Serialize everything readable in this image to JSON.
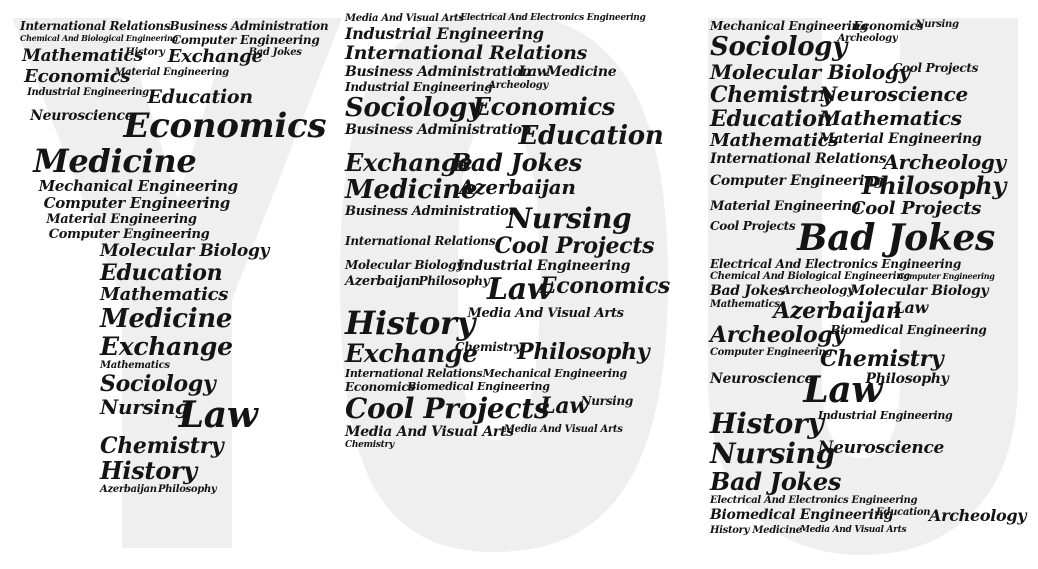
{
  "title": "YOU",
  "colors": {
    "letter_fill": "#efefef",
    "text": "#141414",
    "background": "#ffffff"
  },
  "letters": [
    {
      "glyph": "Y",
      "words": [
        {
          "t": "International Relations",
          "s": 12
        },
        {
          "t": "Business Administration",
          "s": 12
        },
        {
          "t": "Chemical And Biological Engineering",
          "s": 8
        },
        {
          "t": "Computer Engineering",
          "s": 12
        },
        {
          "t": "Mathematics",
          "s": 17
        },
        {
          "t": "History",
          "s": 10
        },
        {
          "t": "Exchange",
          "s": 18
        },
        {
          "t": "Bad Jokes",
          "s": 10
        },
        {
          "t": "Economics",
          "s": 18
        },
        {
          "t": "Material Engineering",
          "s": 10
        },
        {
          "t": "Industrial Engineering",
          "s": 10
        },
        {
          "t": "Education",
          "s": 19
        },
        {
          "t": "Neuroscience",
          "s": 14
        },
        {
          "t": "Economics",
          "s": 34
        },
        {
          "t": "Medicine",
          "s": 32
        },
        {
          "t": "Mechanical Engineering",
          "s": 15
        },
        {
          "t": "Computer Engineering",
          "s": 15
        },
        {
          "t": "Material Engineering",
          "s": 13
        },
        {
          "t": "Computer Engineering",
          "s": 13
        },
        {
          "t": "Molecular Biology",
          "s": 17
        },
        {
          "t": "Education",
          "s": 22
        },
        {
          "t": "Mathematics",
          "s": 18
        },
        {
          "t": "Medicine",
          "s": 26
        },
        {
          "t": "Exchange",
          "s": 25
        },
        {
          "t": "Mathematics",
          "s": 10
        },
        {
          "t": "Sociology",
          "s": 22
        },
        {
          "t": "Nursing",
          "s": 20
        },
        {
          "t": "Law",
          "s": 36
        },
        {
          "t": "Chemistry",
          "s": 22
        },
        {
          "t": "History",
          "s": 24
        },
        {
          "t": "Azerbaijan",
          "s": 10
        },
        {
          "t": "Philosophy",
          "s": 10
        }
      ]
    },
    {
      "glyph": "O",
      "words": [
        {
          "t": "Media And Visual Arts",
          "s": 10
        },
        {
          "t": "Electrical And Electronics Engineering",
          "s": 9
        },
        {
          "t": "Industrial Engineering",
          "s": 16
        },
        {
          "t": "International Relations",
          "s": 19
        },
        {
          "t": "Business Administration",
          "s": 14
        },
        {
          "t": "Law",
          "s": 14
        },
        {
          "t": "Medicine",
          "s": 14
        },
        {
          "t": "Industrial Engineering",
          "s": 12
        },
        {
          "t": "Archeology",
          "s": 10
        },
        {
          "t": "Sociology",
          "s": 26
        },
        {
          "t": "Economics",
          "s": 24
        },
        {
          "t": "Business Administration",
          "s": 14
        },
        {
          "t": "Education",
          "s": 26
        },
        {
          "t": "Exchange",
          "s": 24
        },
        {
          "t": "Bad Jokes",
          "s": 24
        },
        {
          "t": "Medicine",
          "s": 26
        },
        {
          "t": "Azerbaijan",
          "s": 20
        },
        {
          "t": "Business Administration",
          "s": 13
        },
        {
          "t": "Nursing",
          "s": 28
        },
        {
          "t": "International Relations",
          "s": 12
        },
        {
          "t": "Cool Projects",
          "s": 22
        },
        {
          "t": "Molecular Biology",
          "s": 12
        },
        {
          "t": "Industrial Engineering",
          "s": 14
        },
        {
          "t": "Azerbaijan",
          "s": 13
        },
        {
          "t": "Philosophy",
          "s": 12
        },
        {
          "t": "Law",
          "s": 30
        },
        {
          "t": "Economics",
          "s": 22
        },
        {
          "t": "History",
          "s": 32
        },
        {
          "t": "Media And Visual Arts",
          "s": 13
        },
        {
          "t": "Exchange",
          "s": 25
        },
        {
          "t": "Chemistry",
          "s": 12
        },
        {
          "t": "Philosophy",
          "s": 22
        },
        {
          "t": "International Relations",
          "s": 11
        },
        {
          "t": "Mechanical Engineering",
          "s": 11
        },
        {
          "t": "Economics",
          "s": 12
        },
        {
          "t": "Biomedical Engineering",
          "s": 11
        },
        {
          "t": "Cool Projects",
          "s": 28
        },
        {
          "t": "Law",
          "s": 22
        },
        {
          "t": "Nursing",
          "s": 12
        },
        {
          "t": "Media And Visual Arts",
          "s": 14
        },
        {
          "t": "Media And Visual Arts",
          "s": 10
        },
        {
          "t": "Chemistry",
          "s": 9
        }
      ]
    },
    {
      "glyph": "U",
      "words": [
        {
          "t": "Mechanical Engineering",
          "s": 12
        },
        {
          "t": "Economics",
          "s": 12
        },
        {
          "t": "Nursing",
          "s": 10
        },
        {
          "t": "Sociology",
          "s": 26
        },
        {
          "t": "Archeology",
          "s": 10
        },
        {
          "t": "Molecular Biology",
          "s": 20
        },
        {
          "t": "Cool Projects",
          "s": 12
        },
        {
          "t": "Chemistry",
          "s": 22
        },
        {
          "t": "Neuroscience",
          "s": 20
        },
        {
          "t": "Education",
          "s": 22
        },
        {
          "t": "Mathematics",
          "s": 20
        },
        {
          "t": "Mathematics",
          "s": 18
        },
        {
          "t": "Material Engineering",
          "s": 14
        },
        {
          "t": "International Relations",
          "s": 14
        },
        {
          "t": "Archeology",
          "s": 20
        },
        {
          "t": "Computer Engineering",
          "s": 14
        },
        {
          "t": "Philosophy",
          "s": 24
        },
        {
          "t": "Material Engineering",
          "s": 13
        },
        {
          "t": "Cool Projects",
          "s": 18
        },
        {
          "t": "Cool Projects",
          "s": 12
        },
        {
          "t": "Bad Jokes",
          "s": 36
        },
        {
          "t": "Electrical And Electronics Engineering",
          "s": 12
        },
        {
          "t": "Chemical And Biological Engineering",
          "s": 10
        },
        {
          "t": "Computer Engineering",
          "s": 8
        },
        {
          "t": "Bad Jokes",
          "s": 14
        },
        {
          "t": "Archeology",
          "s": 12
        },
        {
          "t": "Molecular Biology",
          "s": 14
        },
        {
          "t": "Mathematics",
          "s": 10
        },
        {
          "t": "Azerbaijan",
          "s": 22
        },
        {
          "t": "Law",
          "s": 16
        },
        {
          "t": "Archeology",
          "s": 22
        },
        {
          "t": "Biomedical Engineering",
          "s": 12
        },
        {
          "t": "Computer Engineering",
          "s": 10
        },
        {
          "t": "Chemistry",
          "s": 22
        },
        {
          "t": "Neuroscience",
          "s": 14
        },
        {
          "t": "Law",
          "s": 36
        },
        {
          "t": "Philosophy",
          "s": 14
        },
        {
          "t": "History",
          "s": 28
        },
        {
          "t": "Industrial Engineering",
          "s": 11
        },
        {
          "t": "Nursing",
          "s": 28
        },
        {
          "t": "Neuroscience",
          "s": 17
        },
        {
          "t": "Bad Jokes",
          "s": 24
        },
        {
          "t": "Electrical And Electronics Engineering",
          "s": 10
        },
        {
          "t": "Biomedical Engineering",
          "s": 14
        },
        {
          "t": "Education",
          "s": 10
        },
        {
          "t": "Archeology",
          "s": 16
        },
        {
          "t": "History",
          "s": 10
        },
        {
          "t": "Medicine",
          "s": 10
        },
        {
          "t": "Media And Visual Arts",
          "s": 9
        }
      ]
    }
  ]
}
